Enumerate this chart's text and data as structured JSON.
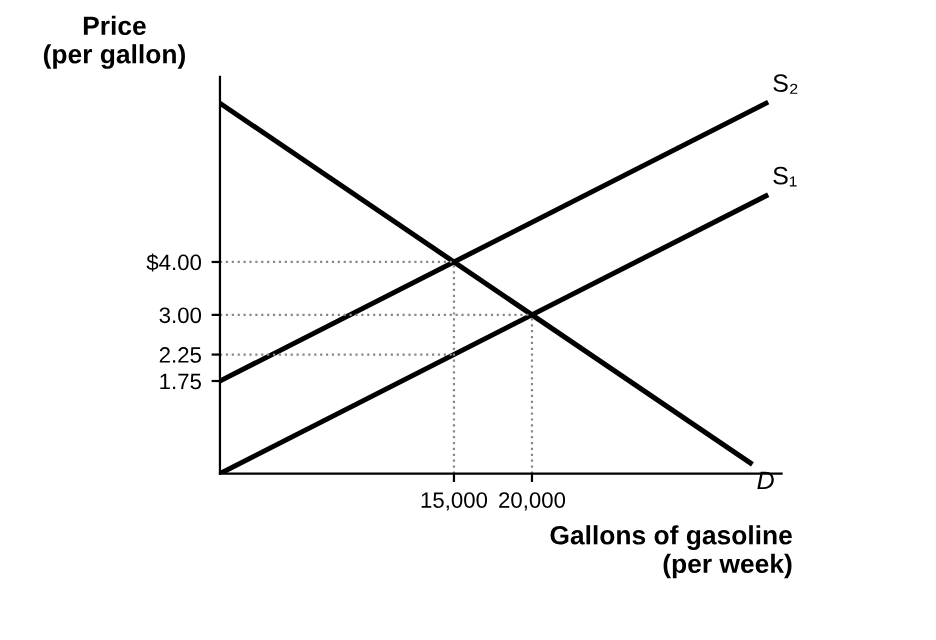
{
  "chart_data": {
    "type": "line",
    "ylabel": "Price\n(per gallon)",
    "xlabel": "Gallons of gasoline\n(per week)",
    "series": [
      {
        "name": "S₂",
        "color": "#000000",
        "x": [
          0,
          35000
        ],
        "values": [
          1.75,
          7.0
        ]
      },
      {
        "name": "S₁",
        "color": "#000000",
        "x": [
          0,
          35000
        ],
        "values": [
          0,
          5.25
        ]
      },
      {
        "name": "D",
        "color": "#000000",
        "x": [
          0,
          34000
        ],
        "values": [
          7.0,
          0.2
        ]
      }
    ],
    "xlim": [
      0,
      36000
    ],
    "ylim": [
      0,
      7.5
    ],
    "xticks": [
      {
        "value": 15000,
        "label": "15,000"
      },
      {
        "value": 20000,
        "label": "20,000"
      }
    ],
    "yticks": [
      {
        "value": 1.75,
        "label": "1.75"
      },
      {
        "value": 2.25,
        "label": "2.25"
      },
      {
        "value": 3,
        "label": "3.00"
      },
      {
        "value": 4,
        "label": "$4.00"
      }
    ],
    "ref_lines": [
      {
        "axis": "y",
        "value": 4,
        "label": null,
        "color": "#888888",
        "line_style": "dotted"
      },
      {
        "axis": "y",
        "value": 3,
        "label": null,
        "color": "#888888",
        "line_style": "dotted"
      },
      {
        "axis": "y",
        "value": 2.25,
        "label": null,
        "color": "#888888",
        "line_style": "dotted"
      },
      {
        "axis": "x",
        "value": 15000,
        "label": null,
        "color": "#888888",
        "line_style": "dotted"
      },
      {
        "axis": "x",
        "value": 20000,
        "label": null,
        "color": "#888888",
        "line_style": "dotted"
      }
    ],
    "line_style": "solid",
    "grid": false,
    "legend": false
  }
}
